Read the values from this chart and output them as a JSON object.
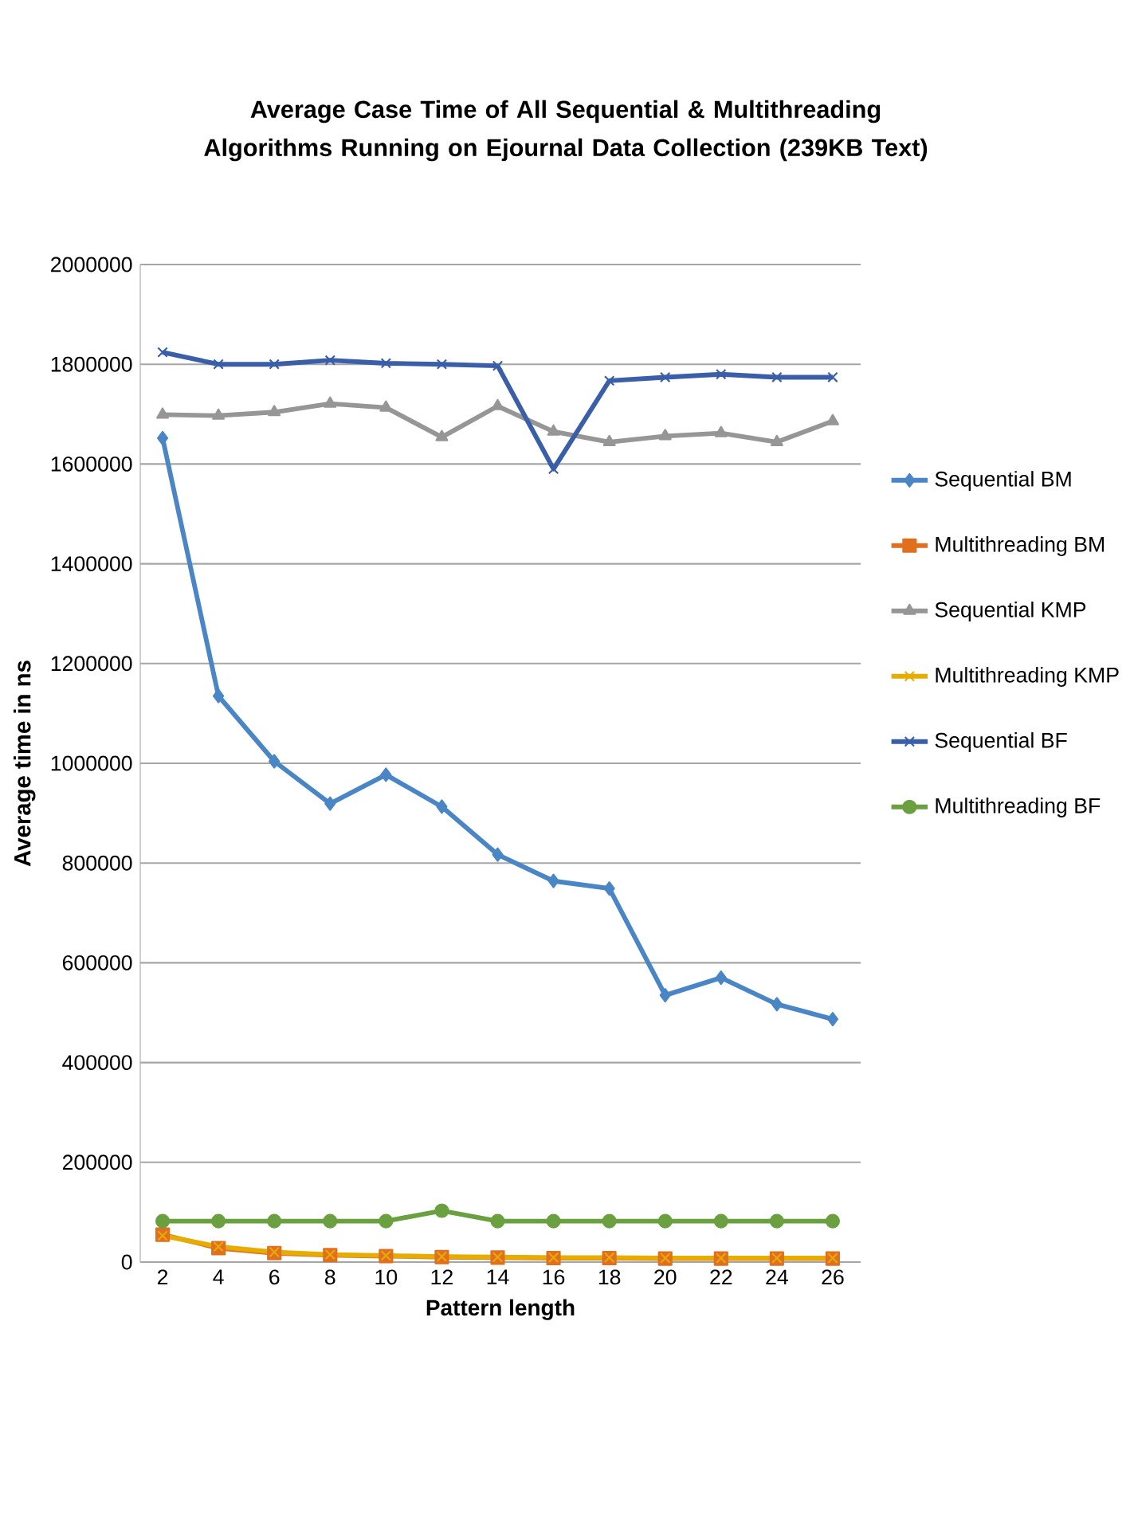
{
  "chart_data": {
    "type": "line",
    "title": "Average Case Time of All Sequential & Multithreading Algorithms Running on Ejournal Data Collection (239KB Text)",
    "xlabel": "Pattern length",
    "ylabel": "Average time in ns",
    "categories": [
      "2",
      "4",
      "6",
      "8",
      "10",
      "12",
      "14",
      "16",
      "18",
      "20",
      "22",
      "24",
      "26"
    ],
    "ylim": [
      0,
      2000000
    ],
    "yticks": [
      0,
      200000,
      400000,
      600000,
      800000,
      1000000,
      1200000,
      1400000,
      1600000,
      1800000,
      2000000
    ],
    "grid": "y",
    "legend": "right",
    "line_style": "solid",
    "series": [
      {
        "name": "Sequential BM",
        "color": "#4a86c5",
        "marker": "diamond",
        "values": [
          1652000,
          1135000,
          1004000,
          919000,
          977000,
          913000,
          817000,
          764000,
          749000,
          535000,
          570000,
          517000,
          487000
        ]
      },
      {
        "name": "Multithreading BM",
        "color": "#e07020",
        "marker": "square",
        "values": [
          55000,
          28000,
          18000,
          14000,
          12000,
          10000,
          9000,
          8000,
          8000,
          7000,
          7000,
          7000,
          7000
        ]
      },
      {
        "name": "Sequential KMP",
        "color": "#969696",
        "marker": "triangle",
        "values": [
          1699000,
          1697000,
          1704000,
          1721000,
          1713000,
          1654000,
          1716000,
          1665000,
          1644000,
          1656000,
          1662000,
          1644000,
          1686000
        ]
      },
      {
        "name": "Multithreading KMP",
        "color": "#e6ac00",
        "marker": "cross",
        "values": [
          53000,
          31000,
          20000,
          15000,
          13000,
          11000,
          10000,
          9000,
          9000,
          8000,
          8000,
          8000,
          8000
        ]
      },
      {
        "name": "Sequential BF",
        "color": "#3a5ea8",
        "marker": "cross",
        "values": [
          1824000,
          1800000,
          1800000,
          1808000,
          1802000,
          1800000,
          1797000,
          1590000,
          1767000,
          1774000,
          1780000,
          1774000,
          1774000
        ]
      },
      {
        "name": "Multithreading BF",
        "color": "#6aa040",
        "marker": "circle",
        "values": [
          82000,
          82000,
          82000,
          82000,
          82000,
          103000,
          82000,
          82000,
          82000,
          82000,
          82000,
          82000,
          82000
        ]
      }
    ]
  }
}
